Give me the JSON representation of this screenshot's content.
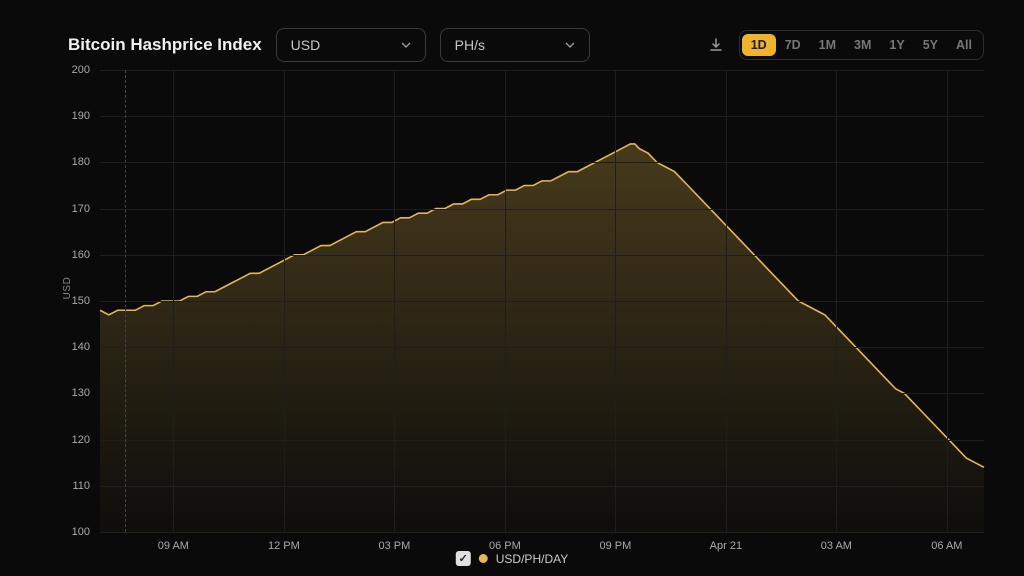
{
  "header": {
    "title": "Bitcoin Hashprice Index",
    "currency_select": "USD",
    "unit_select": "PH/s",
    "ranges": [
      "1D",
      "7D",
      "1M",
      "3M",
      "1Y",
      "5Y",
      "All"
    ],
    "active_range": "1D"
  },
  "chart": {
    "type": "area",
    "y_label": "USD",
    "y_ticks": [
      100,
      110,
      120,
      130,
      140,
      150,
      160,
      170,
      180,
      190,
      200
    ],
    "ylim": [
      100,
      200
    ],
    "x_ticks": [
      "09 AM",
      "12 PM",
      "03 PM",
      "06 PM",
      "09 PM",
      "Apr 21",
      "03 AM",
      "06 AM"
    ],
    "x_tick_positions": [
      0.083,
      0.208,
      0.333,
      0.458,
      0.583,
      0.708,
      0.833,
      0.958
    ],
    "line_color": "#e6b84a",
    "fill_top_color": "rgba(230,184,74,0.28)",
    "fill_bottom_color": "rgba(230,184,74,0.02)",
    "line_width": 1.6,
    "grid_color": "#1e1e1e",
    "background_color": "#0a0a0a",
    "tick_fontsize": 11,
    "tick_color": "#aaaaaa",
    "data": [
      [
        0.0,
        148
      ],
      [
        0.01,
        147
      ],
      [
        0.02,
        148
      ],
      [
        0.03,
        148
      ],
      [
        0.04,
        148
      ],
      [
        0.05,
        149
      ],
      [
        0.06,
        149
      ],
      [
        0.07,
        150
      ],
      [
        0.08,
        150
      ],
      [
        0.09,
        150
      ],
      [
        0.1,
        151
      ],
      [
        0.11,
        151
      ],
      [
        0.12,
        152
      ],
      [
        0.13,
        152
      ],
      [
        0.14,
        153
      ],
      [
        0.15,
        154
      ],
      [
        0.16,
        155
      ],
      [
        0.17,
        156
      ],
      [
        0.18,
        156
      ],
      [
        0.19,
        157
      ],
      [
        0.2,
        158
      ],
      [
        0.21,
        159
      ],
      [
        0.22,
        160
      ],
      [
        0.23,
        160
      ],
      [
        0.24,
        161
      ],
      [
        0.25,
        162
      ],
      [
        0.26,
        162
      ],
      [
        0.27,
        163
      ],
      [
        0.28,
        164
      ],
      [
        0.29,
        165
      ],
      [
        0.3,
        165
      ],
      [
        0.31,
        166
      ],
      [
        0.32,
        167
      ],
      [
        0.33,
        167
      ],
      [
        0.34,
        168
      ],
      [
        0.35,
        168
      ],
      [
        0.36,
        169
      ],
      [
        0.37,
        169
      ],
      [
        0.38,
        170
      ],
      [
        0.39,
        170
      ],
      [
        0.4,
        171
      ],
      [
        0.41,
        171
      ],
      [
        0.42,
        172
      ],
      [
        0.43,
        172
      ],
      [
        0.44,
        173
      ],
      [
        0.45,
        173
      ],
      [
        0.46,
        174
      ],
      [
        0.47,
        174
      ],
      [
        0.48,
        175
      ],
      [
        0.49,
        175
      ],
      [
        0.5,
        176
      ],
      [
        0.51,
        176
      ],
      [
        0.52,
        177
      ],
      [
        0.53,
        178
      ],
      [
        0.54,
        178
      ],
      [
        0.55,
        179
      ],
      [
        0.56,
        180
      ],
      [
        0.57,
        181
      ],
      [
        0.58,
        182
      ],
      [
        0.59,
        183
      ],
      [
        0.6,
        184
      ],
      [
        0.605,
        184
      ],
      [
        0.61,
        183
      ],
      [
        0.62,
        182
      ],
      [
        0.63,
        180
      ],
      [
        0.64,
        179
      ],
      [
        0.65,
        178
      ],
      [
        0.66,
        176
      ],
      [
        0.67,
        174
      ],
      [
        0.68,
        172
      ],
      [
        0.69,
        170
      ],
      [
        0.7,
        168
      ],
      [
        0.71,
        166
      ],
      [
        0.72,
        164
      ],
      [
        0.73,
        162
      ],
      [
        0.74,
        160
      ],
      [
        0.75,
        158
      ],
      [
        0.76,
        156
      ],
      [
        0.77,
        154
      ],
      [
        0.78,
        152
      ],
      [
        0.79,
        150
      ],
      [
        0.8,
        149
      ],
      [
        0.81,
        148
      ],
      [
        0.82,
        147
      ],
      [
        0.83,
        145
      ],
      [
        0.84,
        143
      ],
      [
        0.85,
        141
      ],
      [
        0.86,
        139
      ],
      [
        0.87,
        137
      ],
      [
        0.88,
        135
      ],
      [
        0.89,
        133
      ],
      [
        0.9,
        131
      ],
      [
        0.91,
        130
      ],
      [
        0.92,
        128
      ],
      [
        0.93,
        126
      ],
      [
        0.94,
        124
      ],
      [
        0.95,
        122
      ],
      [
        0.96,
        120
      ],
      [
        0.97,
        118
      ],
      [
        0.98,
        116
      ],
      [
        0.99,
        115
      ],
      [
        1.0,
        114
      ]
    ]
  },
  "legend": {
    "label": "USD/PH/DAY",
    "dot_color": "#e6b84a",
    "checked": true
  }
}
